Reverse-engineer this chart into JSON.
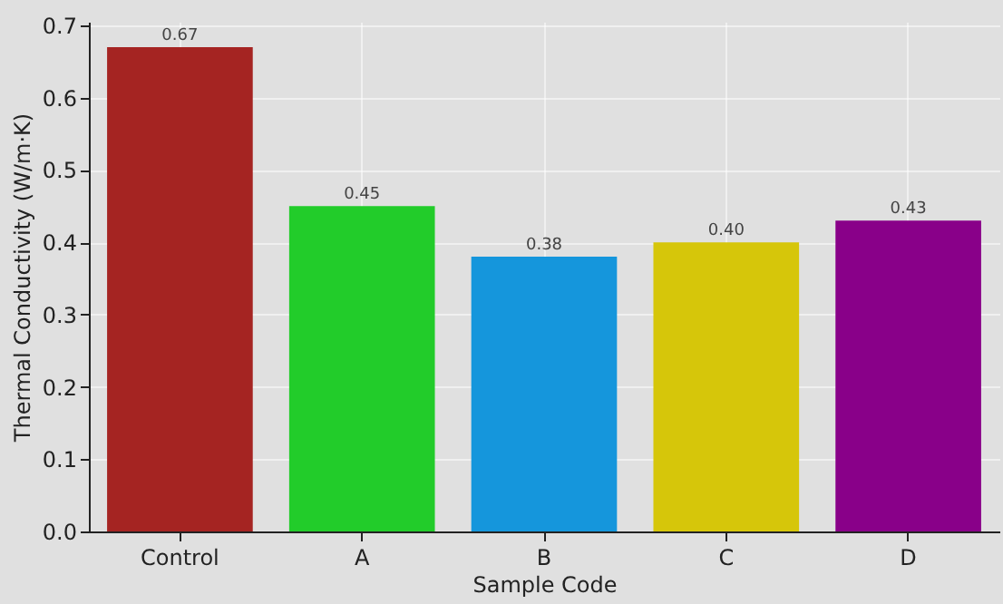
{
  "chart_data": {
    "type": "bar",
    "xlabel": "Sample Code",
    "ylabel": "Thermal Conductivity (W/m·K)",
    "categories": [
      "Control",
      "A",
      "B",
      "C",
      "D"
    ],
    "values": [
      0.67,
      0.45,
      0.38,
      0.4,
      0.43
    ],
    "colors": [
      "#a52422",
      "#22cc2a",
      "#1596dc",
      "#d6c60a",
      "#890089"
    ],
    "value_labels": [
      "0.67",
      "0.45",
      "0.38",
      "0.40",
      "0.43"
    ],
    "ylim": [
      0,
      0.705
    ],
    "yticks": [
      {
        "value": 0,
        "label": "0.0"
      },
      {
        "value": 0.1,
        "label": "0.1"
      },
      {
        "value": 0.2,
        "label": "0.2"
      },
      {
        "value": 0.3,
        "label": "0.3"
      },
      {
        "value": 0.4,
        "label": "0.4"
      },
      {
        "value": 0.5,
        "label": "0.5"
      },
      {
        "value": 0.6,
        "label": "0.6"
      },
      {
        "value": 0.7,
        "label": "0.7"
      }
    ],
    "grid": true
  }
}
